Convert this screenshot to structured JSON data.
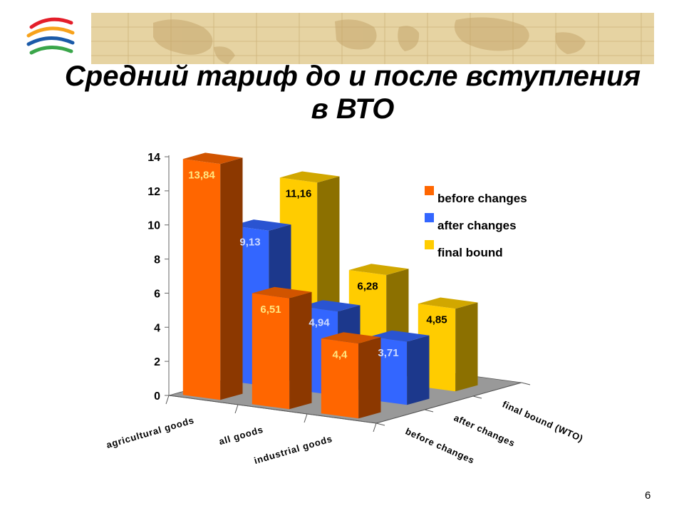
{
  "slide": {
    "title_line1": "Средний тариф до и после вступления",
    "title_line2": "в ВТО",
    "page_number": "6"
  },
  "colors": {
    "before": "#ff6600",
    "after": "#3366ff",
    "final": "#ffcc00",
    "floor": "#999999",
    "banner": "#e6d3a2"
  },
  "banner": {
    "logo_icon": "wto-logo-icon",
    "background_icon": "world-map-icon"
  },
  "chart_data": {
    "type": "bar",
    "categories": [
      "agricultural goods",
      "all goods",
      "industrial goods"
    ],
    "series": [
      {
        "name": "before changes",
        "values": [
          13.84,
          6.51,
          4.4
        ],
        "labels": [
          "13,84",
          "6,51",
          "4,4"
        ]
      },
      {
        "name": "after changes",
        "values": [
          9.13,
          4.94,
          3.71
        ],
        "labels": [
          "9,13",
          "4,94",
          "3,71"
        ]
      },
      {
        "name": "final bound",
        "values": [
          11.16,
          6.28,
          4.85
        ],
        "labels": [
          "11,16",
          "6,28",
          "4,85"
        ]
      }
    ],
    "depth_axis_labels": [
      "before changes",
      "after changes",
      "final bound (WTO)"
    ],
    "yticks": [
      "0",
      "2",
      "4",
      "6",
      "8",
      "10",
      "12",
      "14"
    ],
    "ylim": [
      0,
      14
    ],
    "legend_position": "right",
    "grid": false,
    "three_d": true
  }
}
